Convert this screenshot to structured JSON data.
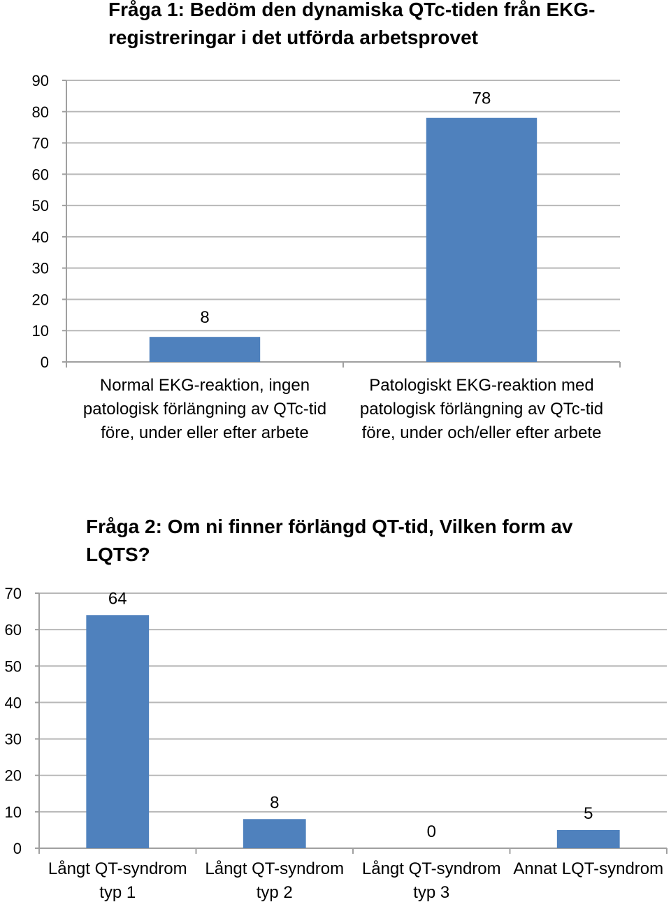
{
  "chart_data": [
    {
      "type": "bar",
      "title": "Fråga 1: Bedöm den dynamiska QTc-tiden från EKG-registreringar i det utförda arbetsprovet",
      "categories": [
        "Normal EKG-reaktion, ingen patologisk förlängning av QTc-tid före, under eller efter arbete",
        "Patologiskt EKG-reaktion med patologisk förlängning av QTc-tid före, under och/eller efter arbete"
      ],
      "values": [
        8,
        78
      ],
      "ylim": [
        0,
        90
      ],
      "yticks": [
        0,
        10,
        20,
        30,
        40,
        50,
        60,
        70,
        80,
        90
      ],
      "grid": true,
      "bar_color": "#4f81bd"
    },
    {
      "type": "bar",
      "title": "Fråga 2: Om ni finner förlängd QT-tid, Vilken form av LQTS?",
      "categories": [
        "Långt QT-syndrom typ 1",
        "Långt QT-syndrom typ 2",
        "Långt QT-syndrom typ 3",
        "Annat LQT-syndrom"
      ],
      "values": [
        64,
        8,
        0,
        5
      ],
      "ylim": [
        0,
        70
      ],
      "yticks": [
        0,
        10,
        20,
        30,
        40,
        50,
        60,
        70
      ],
      "grid": true,
      "bar_color": "#4f81bd"
    }
  ]
}
